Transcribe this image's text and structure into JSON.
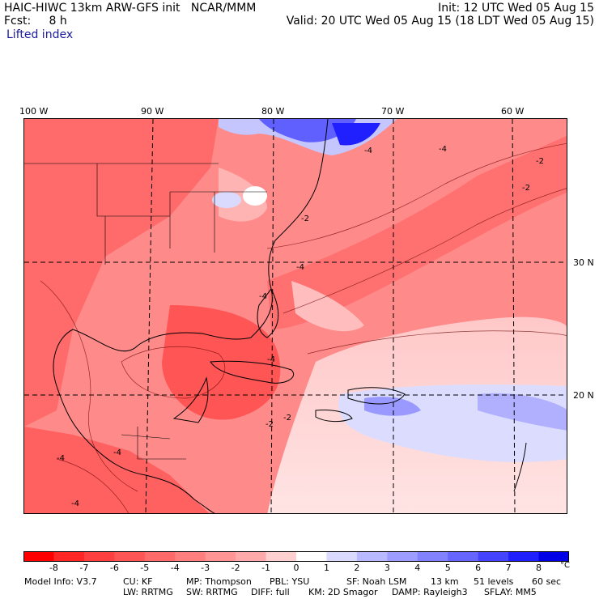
{
  "header": {
    "title": "HAIC-HIWC 13km ARW-GFS init",
    "org": "NCAR/MMM",
    "forecast": "Fcst:     8 h",
    "field": "Lifted index",
    "init": "Init: 12 UTC Wed 05 Aug 15",
    "valid": "Valid: 20 UTC Wed 05 Aug 15 (18 LDT Wed 05 Aug 15)"
  },
  "map": {
    "longitude_labels": [
      "100 W",
      "90 W",
      "80 W",
      "70 W",
      "60 W"
    ],
    "latitude_labels": [
      "30 N",
      "20 N"
    ],
    "contour_labels": [
      "-4",
      "-4",
      "-2",
      "-2",
      "-2",
      "-4",
      "-4",
      "-4",
      "-2",
      "-2",
      "-4",
      "-4",
      "-4"
    ]
  },
  "colorbar": {
    "labels": [
      "-8",
      "-7",
      "-6",
      "-5",
      "-4",
      "-3",
      "-2",
      "-1",
      "0",
      "1",
      "2",
      "3",
      "4",
      "5",
      "6",
      "7",
      "8"
    ],
    "unit": "°C",
    "colors": [
      "#ff0000",
      "#ff2626",
      "#ff4040",
      "#ff5555",
      "#ff6a6a",
      "#ff7f7f",
      "#ff9595",
      "#ffaaaa",
      "#ffd0d0",
      "#ffffff",
      "#dadaff",
      "#b9b9ff",
      "#9d9dff",
      "#8282ff",
      "#6666ff",
      "#4444ff",
      "#2020ff",
      "#0000e6"
    ]
  },
  "model_info": {
    "line1": {
      "model": "Model Info: V3.7",
      "cu": "CU: KF",
      "mp": "MP: Thompson",
      "pbl": "PBL: YSU",
      "sf": "SF: Noah LSM",
      "res": "13 km",
      "levels": "51 levels",
      "dt": "60 sec"
    },
    "line2": {
      "lw": "LW: RRTMG",
      "sw": "SW: RRTMG",
      "diff": "DIFF: full",
      "km": "KM: 2D Smagor",
      "damp": "DAMP: Rayleigh3",
      "sflay": "SFLAY: MM5"
    }
  }
}
